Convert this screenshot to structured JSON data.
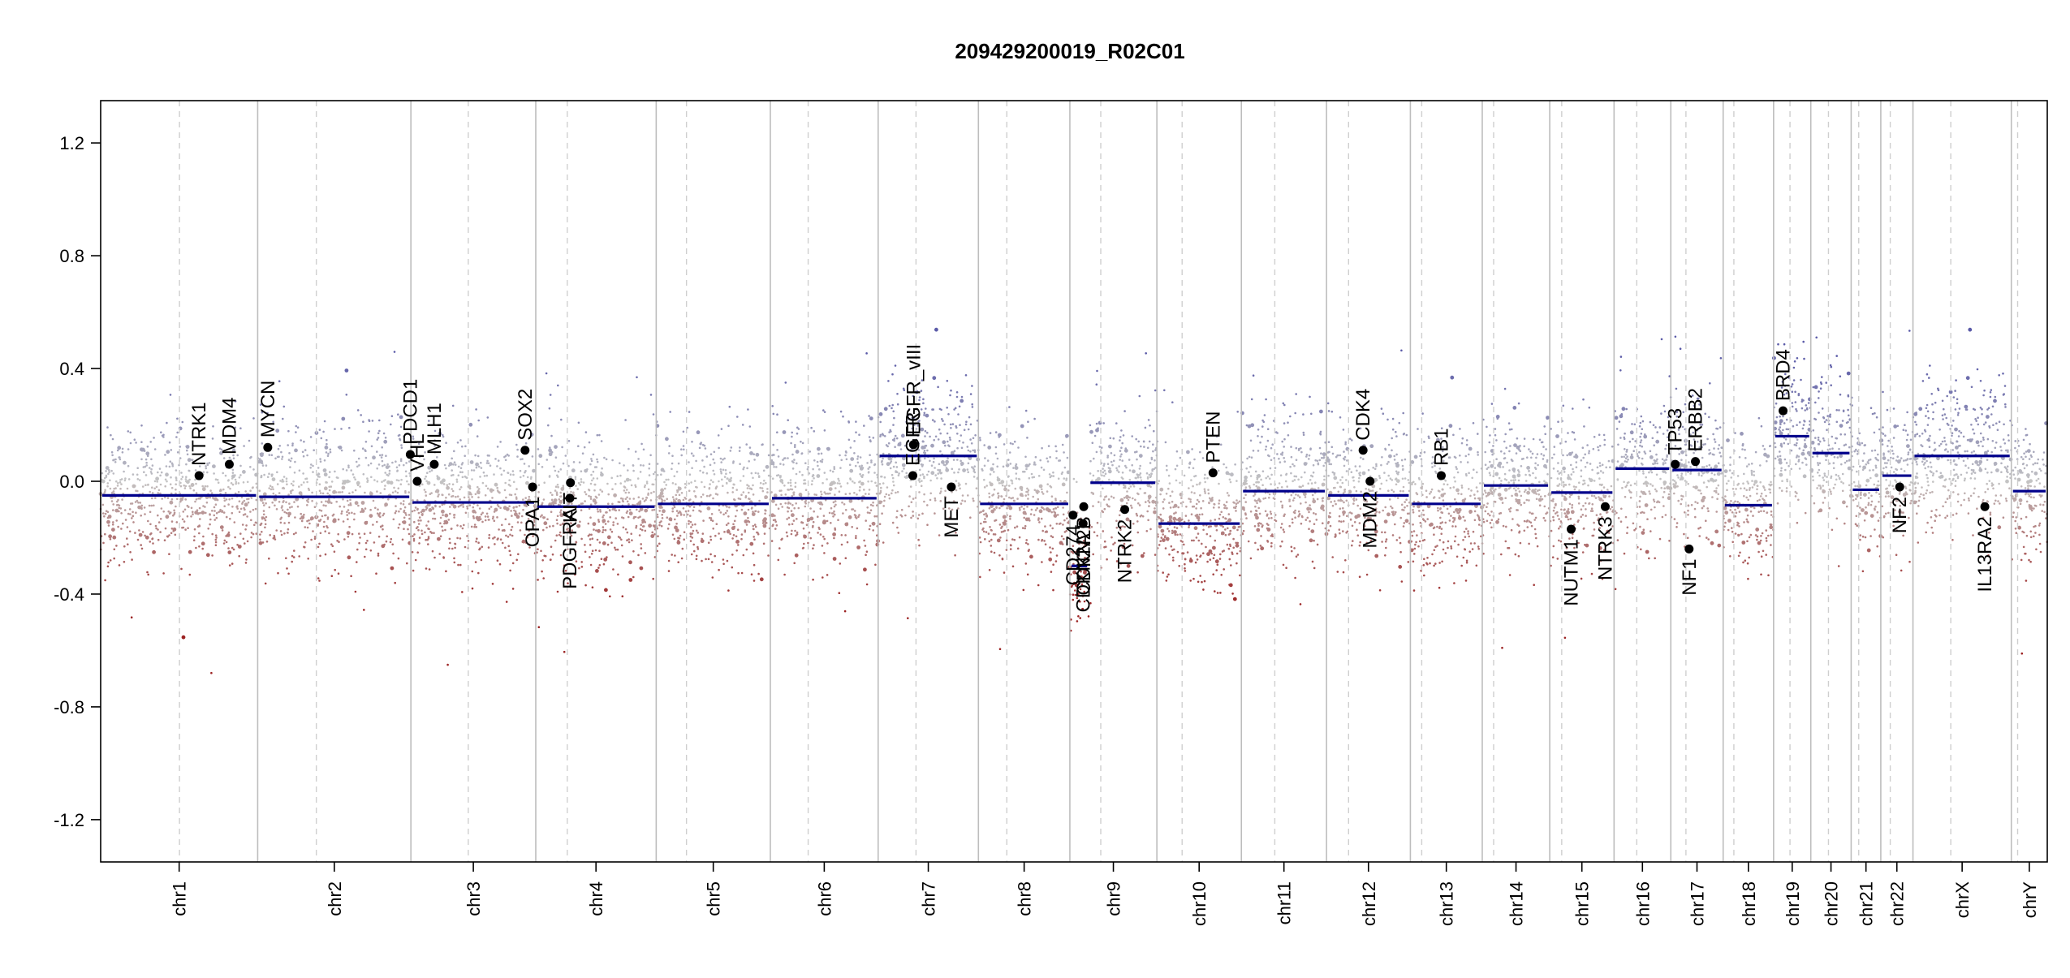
{
  "chart_data": {
    "type": "scatter",
    "title": "209429200019_R02C01",
    "xlabel": "",
    "ylabel": "",
    "ylim": [
      -1.35,
      1.35
    ],
    "y_ticks": [
      -1.2,
      -0.8,
      -0.4,
      0.0,
      0.4,
      0.8,
      1.2
    ],
    "y_tick_labels": [
      "-1.2",
      "-0.8",
      "-0.4",
      "0.0",
      "0.4",
      "0.8",
      "1.2"
    ],
    "grid": false,
    "legend": "none",
    "colors": {
      "gain": "#6f6fb0",
      "loss": "#a83232",
      "neutral": "#c4c4c4",
      "segment": "#00008b",
      "gene_point": "#000000",
      "chrom_line": "#bdbdbd"
    },
    "chromosomes": [
      {
        "name": "chr1",
        "length": 249,
        "centromere": 125
      },
      {
        "name": "chr2",
        "length": 243,
        "centromere": 93
      },
      {
        "name": "chr3",
        "length": 198,
        "centromere": 91
      },
      {
        "name": "chr4",
        "length": 191,
        "centromere": 50
      },
      {
        "name": "chr5",
        "length": 181,
        "centromere": 48
      },
      {
        "name": "chr6",
        "length": 171,
        "centromere": 60
      },
      {
        "name": "chr7",
        "length": 159,
        "centromere": 60
      },
      {
        "name": "chr8",
        "length": 145,
        "centromere": 45
      },
      {
        "name": "chr9",
        "length": 138,
        "centromere": 49
      },
      {
        "name": "chr10",
        "length": 134,
        "centromere": 40
      },
      {
        "name": "chr11",
        "length": 135,
        "centromere": 53
      },
      {
        "name": "chr12",
        "length": 133,
        "centromere": 35
      },
      {
        "name": "chr13",
        "length": 114,
        "centromere": 18
      },
      {
        "name": "chr14",
        "length": 107,
        "centromere": 18
      },
      {
        "name": "chr15",
        "length": 102,
        "centromere": 19
      },
      {
        "name": "chr16",
        "length": 90,
        "centromere": 36
      },
      {
        "name": "chr17",
        "length": 83,
        "centromere": 24
      },
      {
        "name": "chr18",
        "length": 80,
        "centromere": 17
      },
      {
        "name": "chr19",
        "length": 59,
        "centromere": 26
      },
      {
        "name": "chr20",
        "length": 64,
        "centromere": 28
      },
      {
        "name": "chr21",
        "length": 47,
        "centromere": 12
      },
      {
        "name": "chr22",
        "length": 51,
        "centromere": 15
      },
      {
        "name": "chrX",
        "length": 156,
        "centromere": 60
      },
      {
        "name": "chrY",
        "length": 57,
        "centromere": 10
      }
    ],
    "segments": [
      {
        "chr": "chr1",
        "start": 0,
        "end": 249,
        "value": -0.05
      },
      {
        "chr": "chr2",
        "start": 0,
        "end": 243,
        "value": -0.055
      },
      {
        "chr": "chr3",
        "start": 0,
        "end": 198,
        "value": -0.075
      },
      {
        "chr": "chr4",
        "start": 0,
        "end": 191,
        "value": -0.09
      },
      {
        "chr": "chr5",
        "start": 0,
        "end": 181,
        "value": -0.08
      },
      {
        "chr": "chr6",
        "start": 0,
        "end": 171,
        "value": -0.06
      },
      {
        "chr": "chr7",
        "start": 0,
        "end": 159,
        "value": 0.09
      },
      {
        "chr": "chr8",
        "start": 0,
        "end": 145,
        "value": -0.08
      },
      {
        "chr": "chr9",
        "start": 0,
        "end": 30,
        "value": -0.3
      },
      {
        "chr": "chr9",
        "start": 30,
        "end": 138,
        "value": -0.005
      },
      {
        "chr": "chr10",
        "start": 0,
        "end": 134,
        "value": -0.15
      },
      {
        "chr": "chr11",
        "start": 0,
        "end": 135,
        "value": -0.035
      },
      {
        "chr": "chr12",
        "start": 0,
        "end": 133,
        "value": -0.05
      },
      {
        "chr": "chr13",
        "start": 0,
        "end": 114,
        "value": -0.08
      },
      {
        "chr": "chr14",
        "start": 0,
        "end": 107,
        "value": -0.015
      },
      {
        "chr": "chr15",
        "start": 0,
        "end": 102,
        "value": -0.04
      },
      {
        "chr": "chr16",
        "start": 0,
        "end": 90,
        "value": 0.045
      },
      {
        "chr": "chr17",
        "start": 0,
        "end": 83,
        "value": 0.04
      },
      {
        "chr": "chr18",
        "start": 0,
        "end": 80,
        "value": -0.085
      },
      {
        "chr": "chr19",
        "start": 0,
        "end": 59,
        "value": 0.16
      },
      {
        "chr": "chr20",
        "start": 0,
        "end": 64,
        "value": 0.1
      },
      {
        "chr": "chr21",
        "start": 0,
        "end": 47,
        "value": -0.03
      },
      {
        "chr": "chr22",
        "start": 0,
        "end": 51,
        "value": 0.02
      },
      {
        "chr": "chrX",
        "start": 0,
        "end": 156,
        "value": 0.09
      },
      {
        "chr": "chrY",
        "start": 0,
        "end": 57,
        "value": -0.035
      }
    ],
    "genes": [
      {
        "name": "NTRK1",
        "chr": "chr1",
        "pos": 156,
        "value": 0.02,
        "label": "above"
      },
      {
        "name": "MDM4",
        "chr": "chr1",
        "pos": 204,
        "value": 0.06,
        "label": "above"
      },
      {
        "name": "MYCN",
        "chr": "chr2",
        "pos": 16,
        "value": 0.12,
        "label": "above"
      },
      {
        "name": "PDCD1",
        "chr": "chr2",
        "pos": 242,
        "value": 0.095,
        "label": "above"
      },
      {
        "name": "VHL",
        "chr": "chr3",
        "pos": 10,
        "value": 0.0,
        "label": "above"
      },
      {
        "name": "MLH1",
        "chr": "chr3",
        "pos": 37,
        "value": 0.06,
        "label": "above"
      },
      {
        "name": "SOX2",
        "chr": "chr3",
        "pos": 181,
        "value": 0.11,
        "label": "above"
      },
      {
        "name": "OPA1",
        "chr": "chr3",
        "pos": 193,
        "value": -0.02,
        "label": "below"
      },
      {
        "name": "KIT",
        "chr": "chr4",
        "pos": 55,
        "value": -0.005,
        "label": "below"
      },
      {
        "name": "PDGFRA",
        "chr": "chr4",
        "pos": 54,
        "value": -0.06,
        "label": "below"
      },
      {
        "name": "EGFR",
        "chr": "chr7",
        "pos": 55,
        "value": 0.02,
        "label": "above"
      },
      {
        "name": "EGFR_vIII",
        "chr": "chr7",
        "pos": 56,
        "value": 0.13,
        "label": "above"
      },
      {
        "name": "MET",
        "chr": "chr7",
        "pos": 116,
        "value": -0.02,
        "label": "below"
      },
      {
        "name": "CD274",
        "chr": "chr9",
        "pos": 5,
        "value": -0.12,
        "label": "below"
      },
      {
        "name": "CDKN2A",
        "chr": "chr9",
        "pos": 21,
        "value": -0.15,
        "label": "below"
      },
      {
        "name": "CDKN2B",
        "chr": "chr9",
        "pos": 22,
        "value": -0.09,
        "label": "below"
      },
      {
        "name": "NTRK2",
        "chr": "chr9",
        "pos": 87,
        "value": -0.1,
        "label": "below"
      },
      {
        "name": "PTEN",
        "chr": "chr10",
        "pos": 89,
        "value": 0.03,
        "label": "above"
      },
      {
        "name": "CDK4",
        "chr": "chr12",
        "pos": 58,
        "value": 0.11,
        "label": "above"
      },
      {
        "name": "MDM2",
        "chr": "chr12",
        "pos": 69,
        "value": 0.0,
        "label": "below"
      },
      {
        "name": "RB1",
        "chr": "chr13",
        "pos": 49,
        "value": 0.02,
        "label": "above"
      },
      {
        "name": "NUTM1",
        "chr": "chr15",
        "pos": 34,
        "value": -0.17,
        "label": "below"
      },
      {
        "name": "NTRK3",
        "chr": "chr15",
        "pos": 88,
        "value": -0.09,
        "label": "below"
      },
      {
        "name": "TP53",
        "chr": "chr17",
        "pos": 7,
        "value": 0.06,
        "label": "above"
      },
      {
        "name": "NF1",
        "chr": "chr17",
        "pos": 29,
        "value": -0.24,
        "label": "below"
      },
      {
        "name": "ERBB2",
        "chr": "chr17",
        "pos": 39,
        "value": 0.07,
        "label": "above"
      },
      {
        "name": "BRD4",
        "chr": "chr19",
        "pos": 15,
        "value": 0.25,
        "label": "above"
      },
      {
        "name": "NF2",
        "chr": "chr22",
        "pos": 30,
        "value": -0.02,
        "label": "below"
      },
      {
        "name": "IL13RA2",
        "chr": "chrX",
        "pos": 114,
        "value": -0.09,
        "label": "below"
      }
    ]
  }
}
